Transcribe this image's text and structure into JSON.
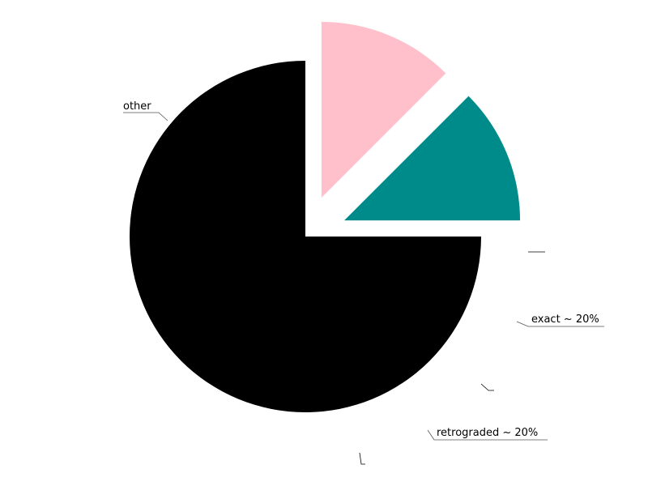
{
  "chart_data": {
    "type": "pie",
    "title": "",
    "slices": [
      {
        "label": "other",
        "value": 75,
        "color": "#000000",
        "exploded": false
      },
      {
        "label": "exact ~ 20%",
        "value": 12.5,
        "color": "#ffc0cb",
        "exploded": true
      },
      {
        "label": "retrograded ~ 20%",
        "value": 12.5,
        "color": "#008b8b",
        "exploded": true
      }
    ],
    "legend": "none",
    "start_angle": "0 degrees (3 o'clock)",
    "direction": "counterclockwise",
    "grid": false
  }
}
